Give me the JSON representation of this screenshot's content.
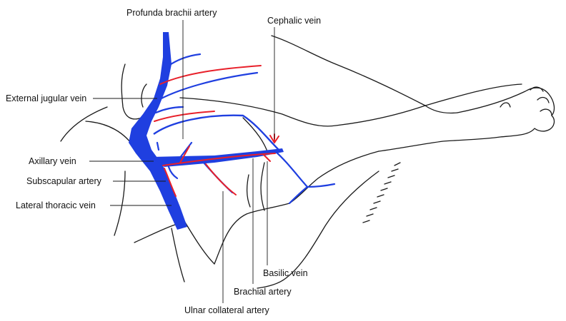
{
  "labels": {
    "profunda_brachii_artery": "Profunda brachii artery",
    "cephalic_vein": "Cephalic vein",
    "external_jugular_vein": "External jugular vein",
    "axillary_vein": "Axillary vein",
    "subscapular_artery": "Subscapular artery",
    "lateral_thoracic_vein": "Lateral thoracic vein",
    "basilic_vein": "Basilic vein",
    "brachial_artery": "Brachial artery",
    "ulnar_collateral_artery": "Ulnar collateral artery"
  },
  "colors": {
    "vein": "#1f3fe0",
    "artery": "#e8202a",
    "outline": "#1a1a1a"
  }
}
